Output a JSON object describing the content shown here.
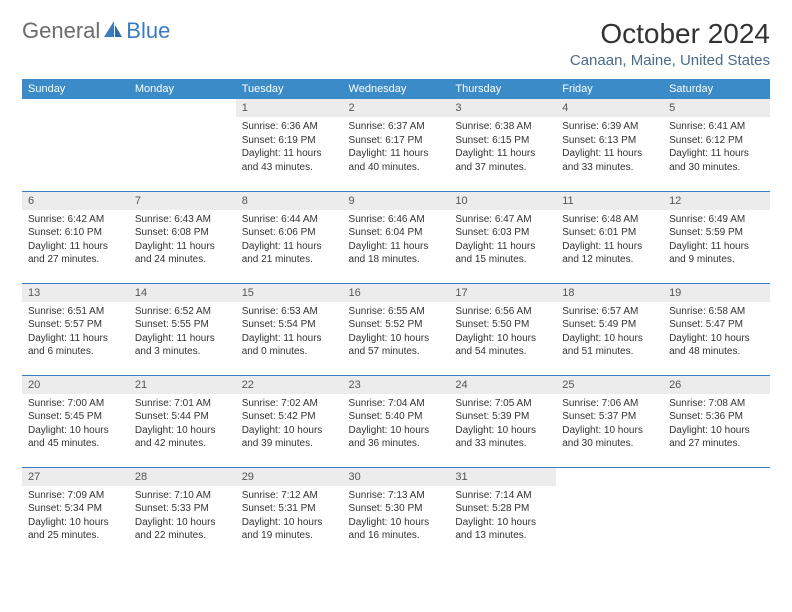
{
  "brand": {
    "part1": "General",
    "part2": "Blue"
  },
  "title": "October 2024",
  "location": "Canaan, Maine, United States",
  "colors": {
    "header_bg": "#3b8bc9",
    "header_text": "#ffffff",
    "daynum_bg": "#ececec",
    "border": "#3b7bbf",
    "logo_gray": "#6b6b6b",
    "logo_blue": "#3b7bbf",
    "location_color": "#4a6a8a"
  },
  "weekdays": [
    "Sunday",
    "Monday",
    "Tuesday",
    "Wednesday",
    "Thursday",
    "Friday",
    "Saturday"
  ],
  "weeks": [
    [
      null,
      null,
      {
        "n": "1",
        "sr": "6:36 AM",
        "ss": "6:19 PM",
        "dl": "11 hours and 43 minutes."
      },
      {
        "n": "2",
        "sr": "6:37 AM",
        "ss": "6:17 PM",
        "dl": "11 hours and 40 minutes."
      },
      {
        "n": "3",
        "sr": "6:38 AM",
        "ss": "6:15 PM",
        "dl": "11 hours and 37 minutes."
      },
      {
        "n": "4",
        "sr": "6:39 AM",
        "ss": "6:13 PM",
        "dl": "11 hours and 33 minutes."
      },
      {
        "n": "5",
        "sr": "6:41 AM",
        "ss": "6:12 PM",
        "dl": "11 hours and 30 minutes."
      }
    ],
    [
      {
        "n": "6",
        "sr": "6:42 AM",
        "ss": "6:10 PM",
        "dl": "11 hours and 27 minutes."
      },
      {
        "n": "7",
        "sr": "6:43 AM",
        "ss": "6:08 PM",
        "dl": "11 hours and 24 minutes."
      },
      {
        "n": "8",
        "sr": "6:44 AM",
        "ss": "6:06 PM",
        "dl": "11 hours and 21 minutes."
      },
      {
        "n": "9",
        "sr": "6:46 AM",
        "ss": "6:04 PM",
        "dl": "11 hours and 18 minutes."
      },
      {
        "n": "10",
        "sr": "6:47 AM",
        "ss": "6:03 PM",
        "dl": "11 hours and 15 minutes."
      },
      {
        "n": "11",
        "sr": "6:48 AM",
        "ss": "6:01 PM",
        "dl": "11 hours and 12 minutes."
      },
      {
        "n": "12",
        "sr": "6:49 AM",
        "ss": "5:59 PM",
        "dl": "11 hours and 9 minutes."
      }
    ],
    [
      {
        "n": "13",
        "sr": "6:51 AM",
        "ss": "5:57 PM",
        "dl": "11 hours and 6 minutes."
      },
      {
        "n": "14",
        "sr": "6:52 AM",
        "ss": "5:55 PM",
        "dl": "11 hours and 3 minutes."
      },
      {
        "n": "15",
        "sr": "6:53 AM",
        "ss": "5:54 PM",
        "dl": "11 hours and 0 minutes."
      },
      {
        "n": "16",
        "sr": "6:55 AM",
        "ss": "5:52 PM",
        "dl": "10 hours and 57 minutes."
      },
      {
        "n": "17",
        "sr": "6:56 AM",
        "ss": "5:50 PM",
        "dl": "10 hours and 54 minutes."
      },
      {
        "n": "18",
        "sr": "6:57 AM",
        "ss": "5:49 PM",
        "dl": "10 hours and 51 minutes."
      },
      {
        "n": "19",
        "sr": "6:58 AM",
        "ss": "5:47 PM",
        "dl": "10 hours and 48 minutes."
      }
    ],
    [
      {
        "n": "20",
        "sr": "7:00 AM",
        "ss": "5:45 PM",
        "dl": "10 hours and 45 minutes."
      },
      {
        "n": "21",
        "sr": "7:01 AM",
        "ss": "5:44 PM",
        "dl": "10 hours and 42 minutes."
      },
      {
        "n": "22",
        "sr": "7:02 AM",
        "ss": "5:42 PM",
        "dl": "10 hours and 39 minutes."
      },
      {
        "n": "23",
        "sr": "7:04 AM",
        "ss": "5:40 PM",
        "dl": "10 hours and 36 minutes."
      },
      {
        "n": "24",
        "sr": "7:05 AM",
        "ss": "5:39 PM",
        "dl": "10 hours and 33 minutes."
      },
      {
        "n": "25",
        "sr": "7:06 AM",
        "ss": "5:37 PM",
        "dl": "10 hours and 30 minutes."
      },
      {
        "n": "26",
        "sr": "7:08 AM",
        "ss": "5:36 PM",
        "dl": "10 hours and 27 minutes."
      }
    ],
    [
      {
        "n": "27",
        "sr": "7:09 AM",
        "ss": "5:34 PM",
        "dl": "10 hours and 25 minutes."
      },
      {
        "n": "28",
        "sr": "7:10 AM",
        "ss": "5:33 PM",
        "dl": "10 hours and 22 minutes."
      },
      {
        "n": "29",
        "sr": "7:12 AM",
        "ss": "5:31 PM",
        "dl": "10 hours and 19 minutes."
      },
      {
        "n": "30",
        "sr": "7:13 AM",
        "ss": "5:30 PM",
        "dl": "10 hours and 16 minutes."
      },
      {
        "n": "31",
        "sr": "7:14 AM",
        "ss": "5:28 PM",
        "dl": "10 hours and 13 minutes."
      },
      null,
      null
    ]
  ],
  "labels": {
    "sunrise": "Sunrise:",
    "sunset": "Sunset:",
    "daylight": "Daylight:"
  }
}
